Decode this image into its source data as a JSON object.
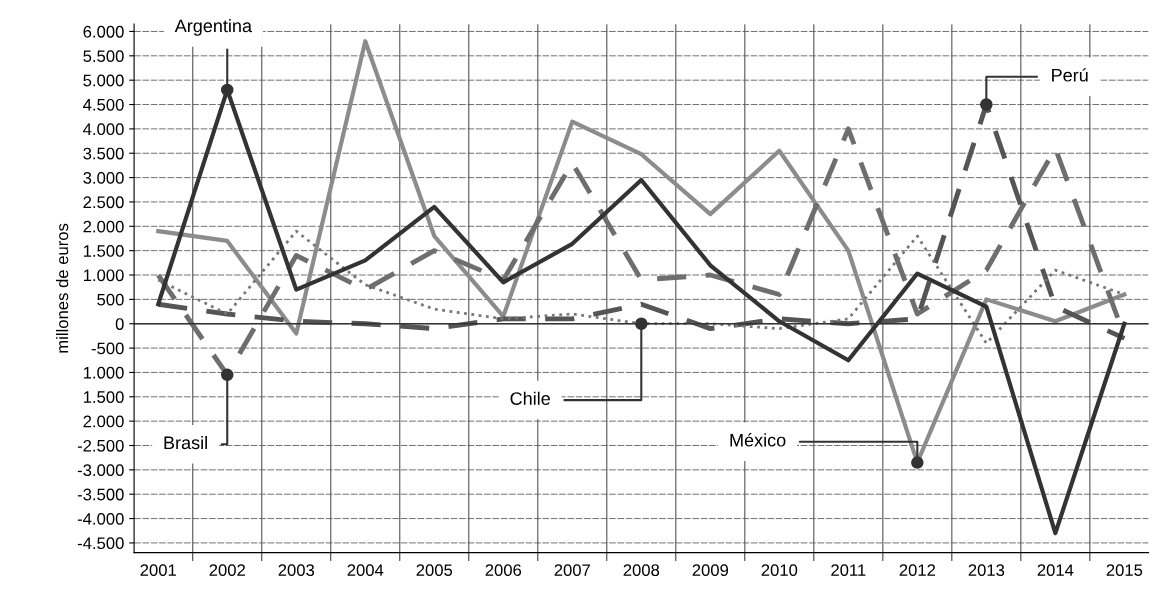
{
  "chart_data": {
    "type": "line",
    "ylabel": "millones de euros",
    "categories": [
      "2001",
      "2002",
      "2003",
      "2004",
      "2005",
      "2006",
      "2007",
      "2008",
      "2009",
      "2010",
      "2011",
      "2012",
      "2013",
      "2014",
      "2015"
    ],
    "series": [
      {
        "color": "#8c8c8c",
        "line_style": "solid",
        "values": [
          1900,
          1700,
          -200,
          5800,
          1800,
          150,
          4150,
          3480,
          2250,
          3550,
          1500,
          -2850,
          500,
          50,
          600
        ]
      },
      {
        "color": "#6e6e6e",
        "line_style": "dashed",
        "values": [
          1000,
          -1050,
          1400,
          700,
          1500,
          900,
          3300,
          900,
          1000,
          600,
          4000,
          200,
          1100,
          3600,
          -250
        ]
      },
      {
        "color": "#555555",
        "line_style": "dashed",
        "values": [
          400,
          200,
          50,
          0,
          -100,
          100,
          100,
          400,
          -100,
          100,
          0,
          100,
          4500,
          350,
          -300
        ]
      },
      {
        "color": "#777777",
        "line_style": "dotted",
        "values": [
          900,
          200,
          1900,
          800,
          300,
          100,
          200,
          0,
          0,
          -100,
          100,
          1800,
          -400,
          1100,
          600
        ]
      },
      {
        "color": "#333333",
        "line_style": "solid",
        "values": [
          400,
          4800,
          700,
          1300,
          2400,
          850,
          1640,
          2950,
          1200,
          50,
          -750,
          1030,
          350,
          -4300,
          0
        ]
      }
    ],
    "annotations": [
      {
        "text": "Argentina",
        "x": "2002",
        "y": 4800
      },
      {
        "text": "Brasil",
        "x": "2002",
        "y": -1050
      },
      {
        "text": "Chile",
        "x": "2008",
        "y": 0
      },
      {
        "text": "México",
        "x": "2012",
        "y": -2850
      },
      {
        "text": "Perú",
        "x": "2013",
        "y": 4500
      }
    ],
    "ylim": [
      -4700,
      6150
    ],
    "yticks": [
      {
        "value": -4500,
        "label": "-4.500"
      },
      {
        "value": -4000,
        "label": "-4.000"
      },
      {
        "value": -3500,
        "label": "-3.500"
      },
      {
        "value": -3000,
        "label": "-3.000"
      },
      {
        "value": -2500,
        "label": "-2.500"
      },
      {
        "value": -2000,
        "label": "2.000"
      },
      {
        "value": -1500,
        "label": "1.500"
      },
      {
        "value": -1000,
        "label": "1.000"
      },
      -500,
      0,
      500,
      {
        "value": 1000,
        "label": "1.000"
      },
      {
        "value": 1500,
        "label": "1.500"
      },
      {
        "value": 2000,
        "label": "2.000"
      },
      {
        "value": 2500,
        "label": "2.500"
      },
      {
        "value": 3000,
        "label": "3.000"
      },
      {
        "value": 3500,
        "label": "3.500"
      },
      {
        "value": 4000,
        "label": "4.000"
      },
      {
        "value": 4500,
        "label": "4.500"
      },
      {
        "value": 5000,
        "label": "5.000"
      },
      {
        "value": 5500,
        "label": "5.500"
      },
      {
        "value": 6000,
        "label": "6.000"
      }
    ],
    "grid": true,
    "marker": "none"
  }
}
